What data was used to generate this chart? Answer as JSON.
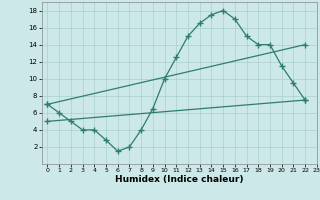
{
  "line1_x": [
    0,
    1,
    2,
    3,
    4,
    5,
    6,
    7,
    8,
    9,
    10,
    11,
    12,
    13,
    14,
    15,
    16,
    17,
    18,
    19,
    20,
    21,
    22
  ],
  "line1_y": [
    7.0,
    6.0,
    5.0,
    4.0,
    4.0,
    2.8,
    1.5,
    2.0,
    4.0,
    6.5,
    10.0,
    12.5,
    15.0,
    16.5,
    17.5,
    18.0,
    17.0,
    15.0,
    14.0,
    14.0,
    11.5,
    9.5,
    7.5
  ],
  "line2_x": [
    0,
    22
  ],
  "line2_y": [
    7.0,
    14.0
  ],
  "line3_x": [
    0,
    22
  ],
  "line3_y": [
    5.0,
    7.5
  ],
  "color": "#2e7d6e",
  "bg_color": "#cce8e8",
  "grid_color": "#aacfcf",
  "xlabel": "Humidex (Indice chaleur)",
  "ylim": [
    0,
    19
  ],
  "xlim": [
    -0.5,
    23
  ],
  "yticks": [
    2,
    4,
    6,
    8,
    10,
    12,
    14,
    16,
    18
  ],
  "xticks": [
    0,
    1,
    2,
    3,
    4,
    5,
    6,
    7,
    8,
    9,
    10,
    11,
    12,
    13,
    14,
    15,
    16,
    17,
    18,
    19,
    20,
    21,
    22,
    23
  ],
  "marker": "+",
  "markersize": 4.0,
  "linewidth": 0.9
}
